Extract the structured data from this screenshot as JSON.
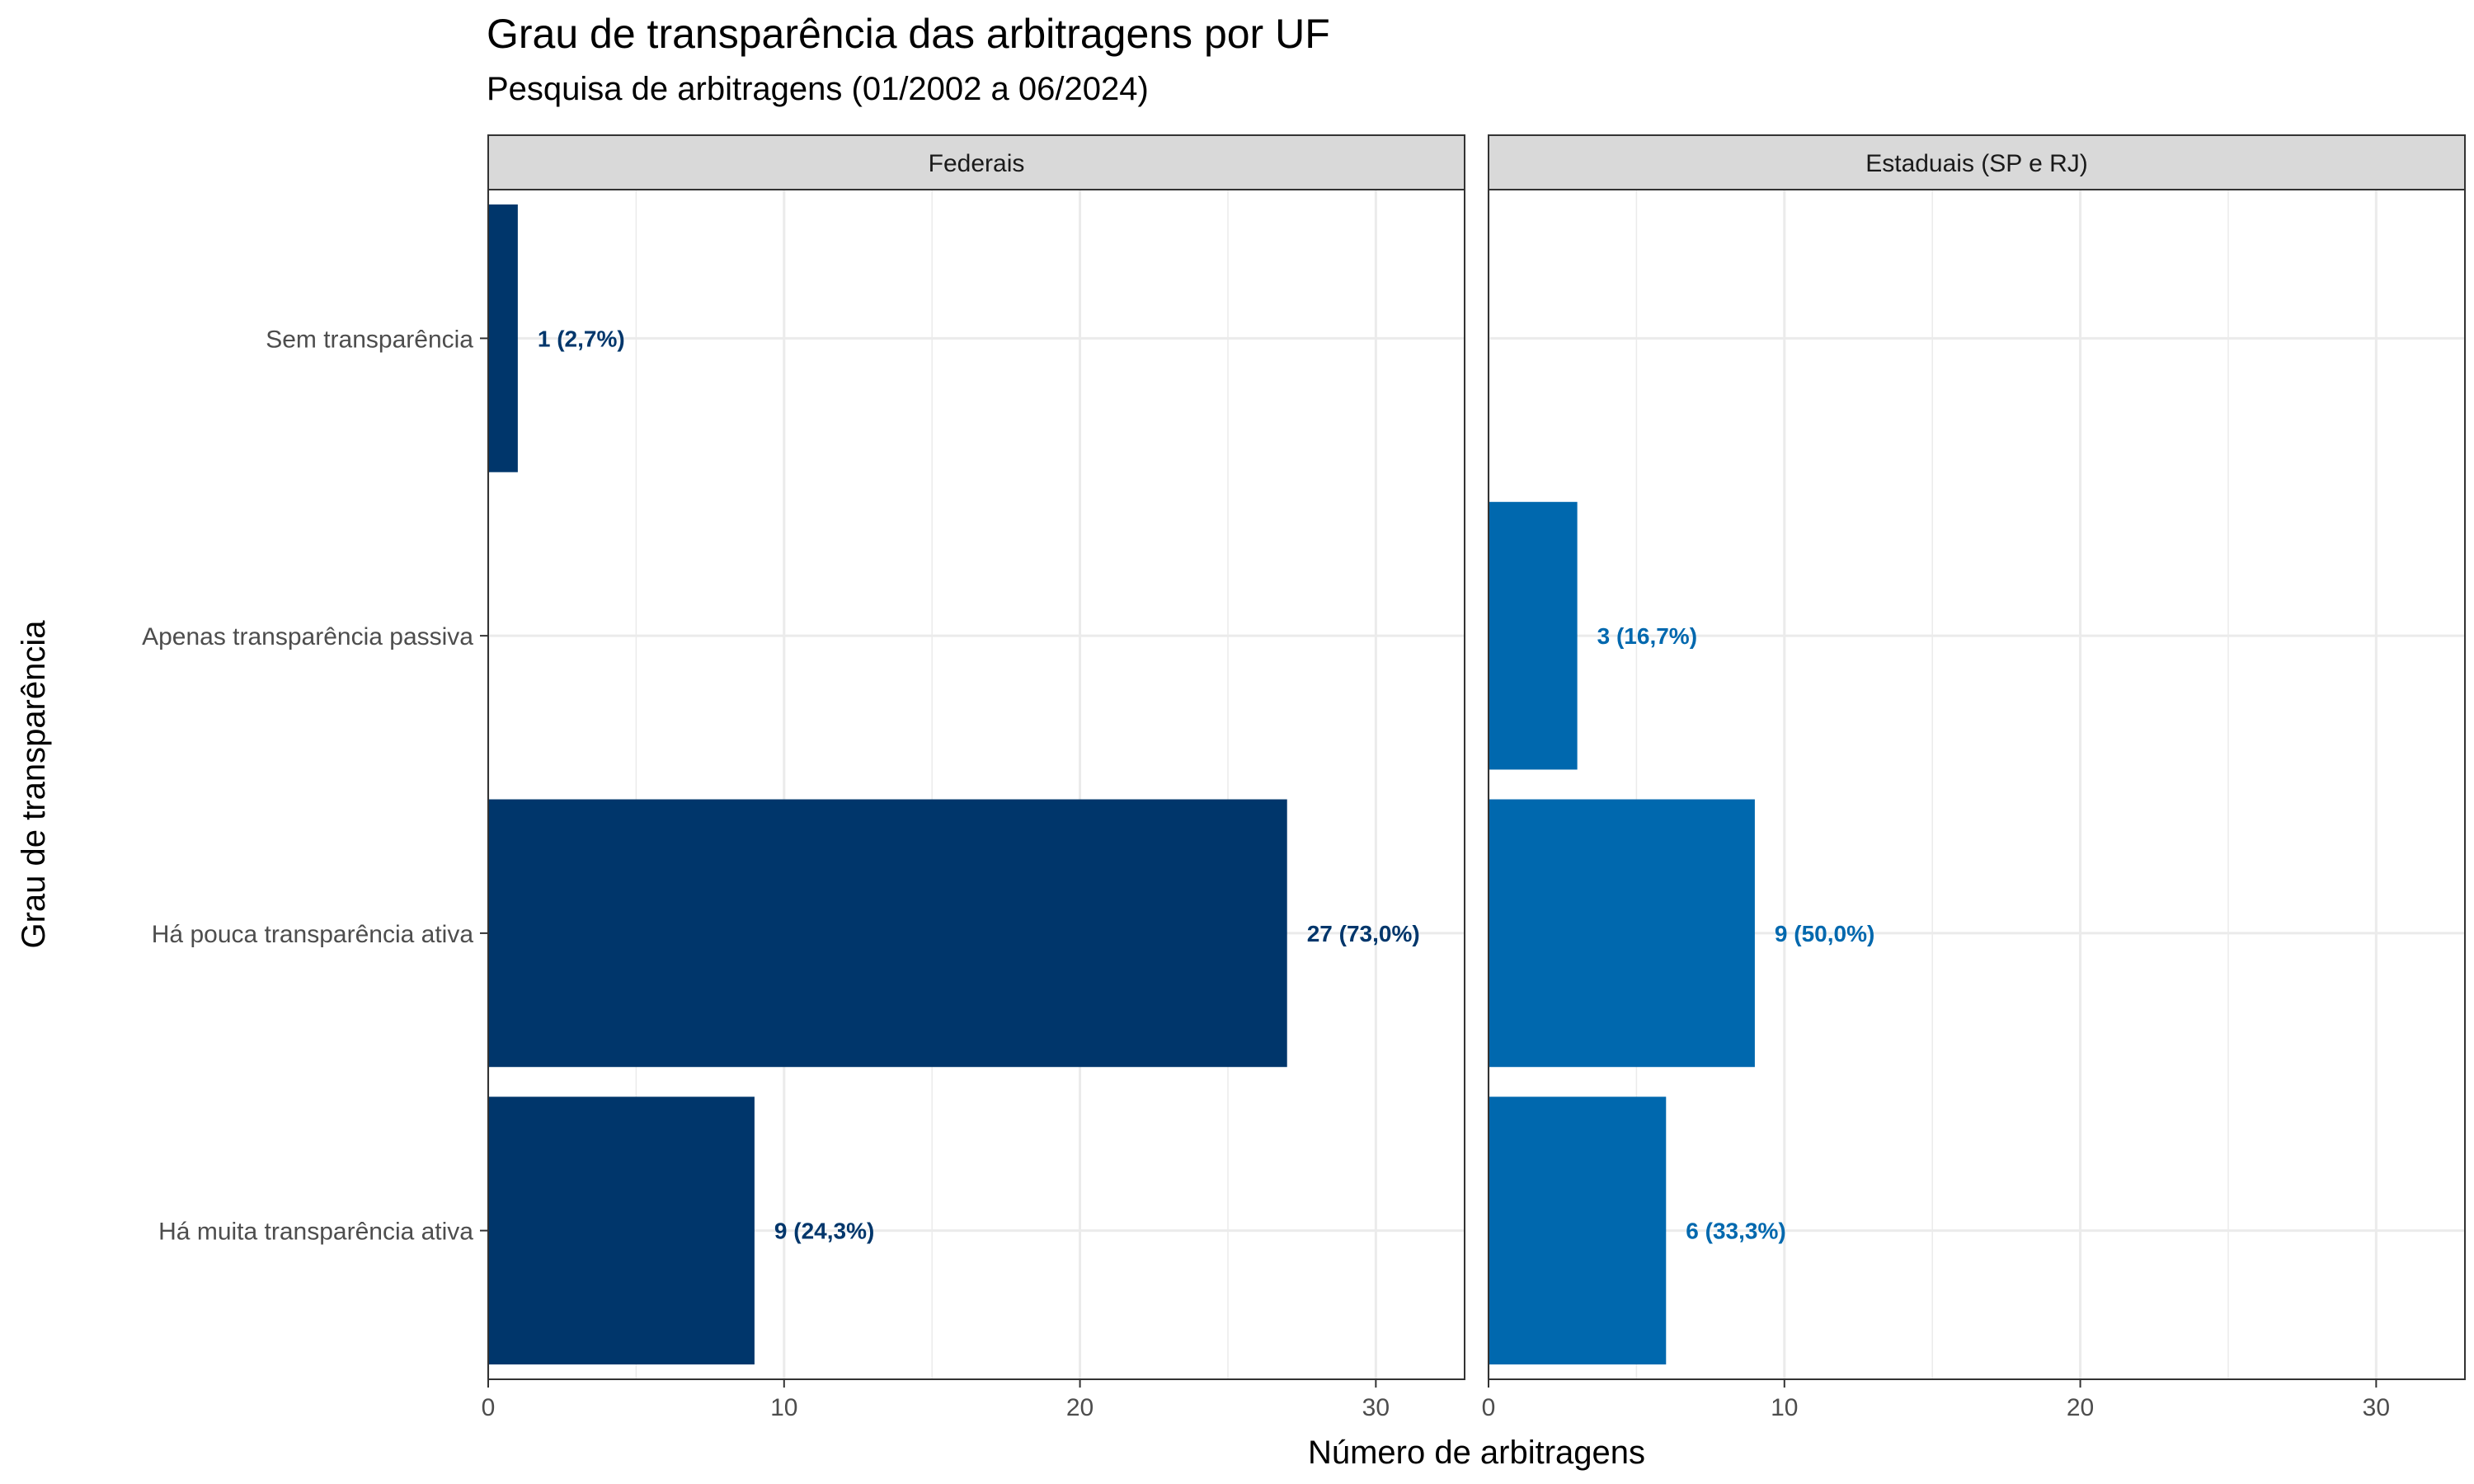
{
  "title": "Grau de transparência das arbitragens por UF",
  "subtitle": "Pesquisa de arbitragens (01/2002 a 06/2024)",
  "chart_data": {
    "type": "bar",
    "orientation": "horizontal",
    "title": "Grau de transparência das arbitragens por UF",
    "subtitle": "Pesquisa de arbitragens (01/2002 a 06/2024)",
    "xlabel": "Número de arbitragens",
    "ylabel": "Grau de transparência",
    "xlim": [
      0,
      33
    ],
    "x_ticks": [
      0,
      10,
      20,
      30
    ],
    "grid": true,
    "categories": [
      "Sem transparência",
      "Apenas transparência passiva",
      "Há pouca transparência ativa",
      "Há muita transparência ativa"
    ],
    "panels": [
      {
        "name": "Federais",
        "color": "#00366B",
        "values": [
          1,
          null,
          27,
          9
        ],
        "labels": [
          "1 (2,7%)",
          "",
          "27 (73,0%)",
          "9 (24,3%)"
        ]
      },
      {
        "name": "Estaduais (SP e RJ)",
        "color": "#0068AE",
        "values": [
          null,
          3,
          9,
          6
        ],
        "labels": [
          "",
          "3 (16,7%)",
          "9 (50,0%)",
          "6 (33,3%)"
        ]
      }
    ]
  }
}
